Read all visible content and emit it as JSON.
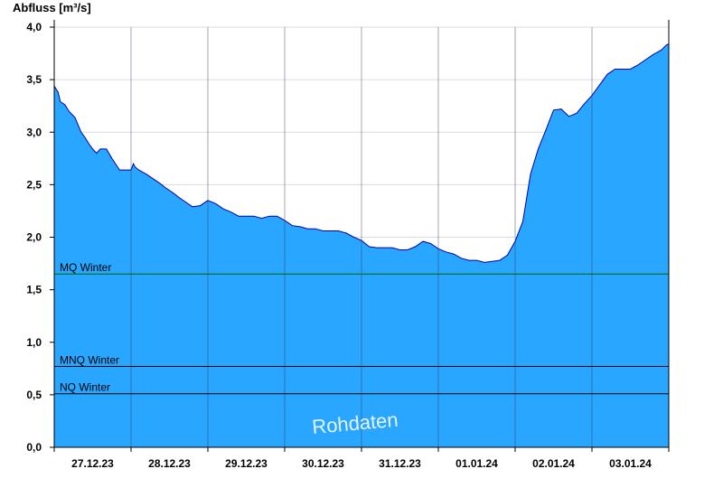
{
  "chart_data": {
    "type": "area",
    "ylabel": "Abfluss [m³/s]",
    "ylim": [
      0,
      4.1
    ],
    "yticks": [
      0,
      0.5,
      1.0,
      1.5,
      2.0,
      2.5,
      3.0,
      3.5,
      4.0
    ],
    "ytick_labels": [
      "0,0",
      "0,5",
      "1,0",
      "1,5",
      "2,0",
      "2,5",
      "3,0",
      "3,5",
      "4,0"
    ],
    "xlim": [
      0,
      8
    ],
    "day_labels": [
      "27.12.23",
      "28.12.23",
      "29.12.23",
      "30.12.23",
      "31.12.23",
      "01.01.24",
      "02.01.24",
      "03.01.24"
    ],
    "colors": {
      "fill": "#29a6ff",
      "outline": "#0000aa",
      "mq_line": "#006600",
      "grid": "#dcdcdc"
    },
    "grid": true,
    "reference_lines": [
      {
        "label": "MQ Winter",
        "value": 1.65,
        "color": "#006600"
      },
      {
        "label": "MNQ Winter",
        "value": 0.77,
        "color": "#000000"
      },
      {
        "label": "NQ Winter",
        "value": 0.51,
        "color": "#000000"
      }
    ],
    "watermark": "Rohdaten",
    "series": [
      {
        "x": [
          0.0,
          0.05,
          0.08,
          0.14,
          0.19,
          0.23,
          0.27,
          0.31,
          0.35,
          0.4,
          0.45,
          0.5,
          0.55,
          0.6,
          0.64,
          0.68,
          0.75,
          0.85,
          0.95,
          1.0,
          1.03,
          1.05,
          1.1,
          1.2,
          1.3,
          1.38,
          1.45,
          1.55,
          1.62,
          1.7,
          1.8,
          1.9,
          2.0,
          2.1,
          2.2,
          2.3,
          2.4,
          2.5,
          2.6,
          2.7,
          2.8,
          2.9,
          3.0,
          3.1,
          3.2,
          3.3,
          3.4,
          3.5,
          3.6,
          3.7,
          3.8,
          3.9,
          4.0,
          4.1,
          4.2,
          4.3,
          4.4,
          4.5,
          4.6,
          4.7,
          4.8,
          4.9,
          5.0,
          5.1,
          5.2,
          5.3,
          5.4,
          5.5,
          5.6,
          5.7,
          5.8,
          5.9,
          6.0,
          6.1,
          6.2,
          6.3,
          6.4,
          6.5,
          6.6,
          6.7,
          6.8,
          6.9,
          7.0,
          7.1,
          7.2,
          7.3,
          7.4,
          7.5,
          7.6,
          7.7,
          7.8,
          7.9,
          7.97,
          8.0
        ],
        "y": [
          3.44,
          3.38,
          3.29,
          3.26,
          3.2,
          3.17,
          3.14,
          3.07,
          3.0,
          2.95,
          2.89,
          2.84,
          2.8,
          2.84,
          2.84,
          2.84,
          2.75,
          2.64,
          2.64,
          2.64,
          2.7,
          2.67,
          2.64,
          2.6,
          2.55,
          2.51,
          2.47,
          2.42,
          2.38,
          2.34,
          2.29,
          2.3,
          2.35,
          2.32,
          2.27,
          2.24,
          2.2,
          2.2,
          2.2,
          2.18,
          2.2,
          2.2,
          2.16,
          2.11,
          2.1,
          2.08,
          2.08,
          2.06,
          2.06,
          2.06,
          2.04,
          2.0,
          1.97,
          1.91,
          1.9,
          1.9,
          1.9,
          1.88,
          1.88,
          1.91,
          1.96,
          1.94,
          1.89,
          1.86,
          1.84,
          1.8,
          1.78,
          1.78,
          1.76,
          1.77,
          1.78,
          1.83,
          1.96,
          2.15,
          2.6,
          2.84,
          3.02,
          3.21,
          3.22,
          3.15,
          3.18,
          3.27,
          3.35,
          3.45,
          3.55,
          3.6,
          3.6,
          3.6,
          3.64,
          3.69,
          3.74,
          3.78,
          3.83,
          3.84
        ]
      }
    ]
  }
}
